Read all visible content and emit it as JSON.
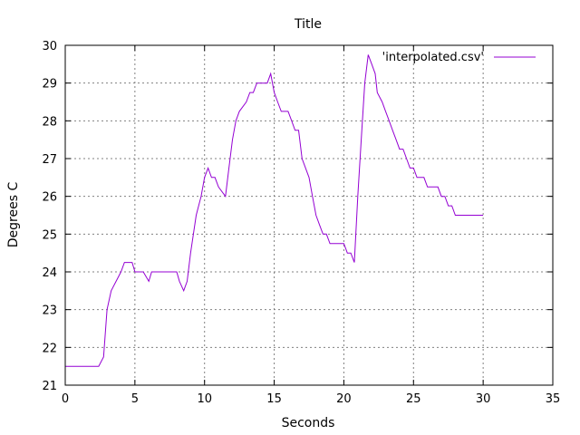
{
  "chart_data": {
    "type": "line",
    "title": "Title",
    "xlabel": "Seconds",
    "ylabel": "Degrees C",
    "xlim": [
      0,
      35
    ],
    "ylim": [
      21,
      30
    ],
    "xticks": [
      0,
      5,
      10,
      15,
      20,
      25,
      30,
      35
    ],
    "yticks": [
      21,
      22,
      23,
      24,
      25,
      26,
      27,
      28,
      29,
      30
    ],
    "grid": true,
    "legend_position": "top-right",
    "series": [
      {
        "name": "'interpolated.csv'",
        "color": "#9400d3",
        "x": [
          0,
          2.4,
          2.75,
          3.0,
          3.3,
          3.65,
          4.0,
          4.25,
          4.5,
          4.8,
          5.0,
          5.25,
          5.6,
          6.0,
          6.2,
          6.5,
          7.0,
          7.5,
          8.0,
          8.2,
          8.5,
          8.75,
          9.0,
          9.4,
          9.75,
          10.0,
          10.25,
          10.5,
          10.75,
          11.0,
          11.5,
          11.75,
          12.0,
          12.25,
          12.5,
          13.0,
          13.25,
          13.5,
          13.75,
          14.0,
          14.5,
          14.75,
          15.0,
          15.25,
          15.5,
          16.0,
          16.25,
          16.5,
          16.75,
          17.0,
          17.5,
          17.75,
          18.0,
          18.25,
          18.5,
          18.75,
          19.0,
          19.25,
          19.5,
          19.75,
          20.0,
          20.25,
          20.5,
          20.75,
          21.0,
          21.25,
          21.5,
          21.75,
          22.0,
          22.25,
          22.4,
          22.75,
          23.0,
          23.25,
          23.5,
          23.75,
          24.0,
          24.25,
          24.5,
          24.75,
          25.0,
          25.25,
          25.5,
          25.75,
          26.0,
          26.25,
          26.5,
          26.75,
          27.0,
          27.25,
          27.5,
          27.75,
          28.0,
          28.25,
          28.5,
          28.75,
          29.0,
          29.25,
          29.5,
          29.75,
          30.0
        ],
        "y": [
          21.5,
          21.5,
          21.75,
          23.0,
          23.5,
          23.75,
          24.0,
          24.25,
          24.25,
          24.25,
          24.0,
          24.0,
          24.0,
          23.75,
          24.0,
          24.0,
          24.0,
          24.0,
          24.0,
          23.75,
          23.5,
          23.75,
          24.5,
          25.5,
          26.0,
          26.5,
          26.75,
          26.5,
          26.5,
          26.25,
          26.0,
          26.75,
          27.5,
          28.0,
          28.25,
          28.5,
          28.75,
          28.75,
          29.0,
          29.0,
          29.0,
          29.25,
          28.75,
          28.5,
          28.25,
          28.25,
          28.0,
          27.75,
          27.75,
          27.0,
          26.5,
          26.0,
          25.5,
          25.25,
          25.0,
          25.0,
          24.75,
          24.75,
          24.75,
          24.75,
          24.75,
          24.5,
          24.5,
          24.25,
          26.0,
          27.5,
          29.0,
          29.75,
          29.5,
          29.25,
          28.75,
          28.5,
          28.25,
          28.0,
          27.75,
          27.5,
          27.25,
          27.25,
          27.0,
          26.75,
          26.75,
          26.5,
          26.5,
          26.5,
          26.25,
          26.25,
          26.25,
          26.25,
          26.0,
          26.0,
          25.75,
          25.75,
          25.5,
          25.5,
          25.5,
          25.5,
          25.5,
          25.5,
          25.5,
          25.5,
          25.5
        ]
      }
    ]
  }
}
